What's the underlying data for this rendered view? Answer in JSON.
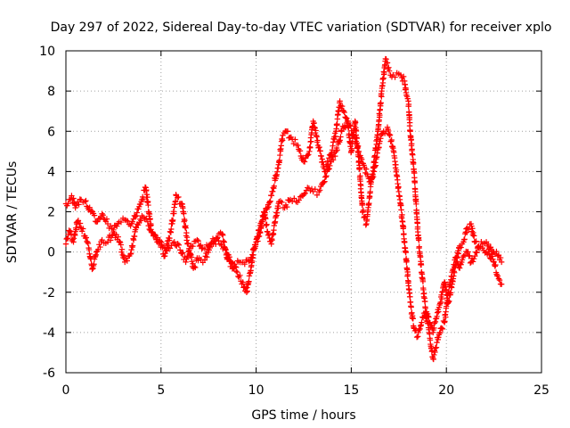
{
  "chart_data": {
    "type": "scatter",
    "title": "Day 297 of 2022, Sidereal Day-to-day VTEC variation (SDTVAR) for receiver xplo",
    "xlabel": "GPS time / hours",
    "ylabel": "SDTVAR / TECUs",
    "xlim": [
      0,
      25
    ],
    "ylim": [
      -6,
      10
    ],
    "x_ticks": [
      0,
      5,
      10,
      15,
      20,
      25
    ],
    "y_ticks": [
      -6,
      -4,
      -2,
      0,
      2,
      4,
      6,
      8,
      10
    ],
    "grid": true,
    "marker": "+",
    "series_color": "#ff0000",
    "series": [
      {
        "name": "SDTVAR",
        "trace_1": [
          [
            0.0,
            2.4
          ],
          [
            0.3,
            2.8
          ],
          [
            0.5,
            2.2
          ],
          [
            0.8,
            2.6
          ],
          [
            1.0,
            2.5
          ],
          [
            1.3,
            2.0
          ],
          [
            1.6,
            1.5
          ],
          [
            1.9,
            1.9
          ],
          [
            2.2,
            1.4
          ],
          [
            2.5,
            1.1
          ],
          [
            2.8,
            1.5
          ],
          [
            3.1,
            1.6
          ],
          [
            3.4,
            1.3
          ],
          [
            3.7,
            1.8
          ],
          [
            4.0,
            2.6
          ],
          [
            4.2,
            3.2
          ],
          [
            4.5,
            1.0
          ],
          [
            4.8,
            0.5
          ],
          [
            5.1,
            0.3
          ],
          [
            5.4,
            0.2
          ],
          [
            5.7,
            0.5
          ],
          [
            6.0,
            0.1
          ],
          [
            6.3,
            -0.5
          ],
          [
            6.6,
            0.3
          ],
          [
            6.9,
            0.6
          ],
          [
            7.2,
            0.2
          ],
          [
            7.5,
            0.3
          ],
          [
            7.8,
            0.6
          ],
          [
            8.1,
            0.4
          ],
          [
            8.4,
            0.1
          ],
          [
            8.7,
            -0.5
          ],
          [
            9.0,
            -1.0
          ],
          [
            9.3,
            -1.5
          ],
          [
            9.5,
            -2.0
          ],
          [
            9.7,
            -1.0
          ],
          [
            9.9,
            0.2
          ],
          [
            10.2,
            1.0
          ],
          [
            10.4,
            2.0
          ],
          [
            10.6,
            1.0
          ],
          [
            10.8,
            0.4
          ],
          [
            11.0,
            1.5
          ],
          [
            11.2,
            2.5
          ],
          [
            11.5,
            2.2
          ],
          [
            11.8,
            2.6
          ],
          [
            12.1,
            2.5
          ],
          [
            12.4,
            2.8
          ],
          [
            12.7,
            3.2
          ],
          [
            13.0,
            3.0
          ],
          [
            13.3,
            3.0
          ],
          [
            13.6,
            3.5
          ],
          [
            13.9,
            4.5
          ],
          [
            14.2,
            5.0
          ],
          [
            14.5,
            6.0
          ],
          [
            14.8,
            6.5
          ],
          [
            15.1,
            5.8
          ],
          [
            15.4,
            5.0
          ],
          [
            15.7,
            4.2
          ],
          [
            16.0,
            3.5
          ],
          [
            16.2,
            4.0
          ],
          [
            16.5,
            5.5
          ],
          [
            16.7,
            6.0
          ],
          [
            16.9,
            6.2
          ],
          [
            17.1,
            5.5
          ],
          [
            17.3,
            4.5
          ],
          [
            17.5,
            3.0
          ],
          [
            17.7,
            1.5
          ],
          [
            17.9,
            -0.5
          ],
          [
            18.1,
            -2.5
          ],
          [
            18.3,
            -3.8
          ],
          [
            18.5,
            -4.2
          ],
          [
            18.7,
            -3.5
          ],
          [
            18.9,
            -3.0
          ],
          [
            19.1,
            -4.0
          ],
          [
            19.3,
            -5.3
          ],
          [
            19.5,
            -4.5
          ],
          [
            19.7,
            -3.8
          ],
          [
            19.9,
            -3.5
          ],
          [
            20.1,
            -2.0
          ],
          [
            20.3,
            -1.0
          ],
          [
            20.5,
            -0.3
          ],
          [
            20.7,
            -0.8
          ],
          [
            20.9,
            -0.2
          ],
          [
            21.1,
            0.0
          ],
          [
            21.3,
            -0.5
          ],
          [
            21.5,
            -0.2
          ],
          [
            21.7,
            0.2
          ],
          [
            21.9,
            0.4
          ],
          [
            22.1,
            0.5
          ],
          [
            22.3,
            0.2
          ],
          [
            22.5,
            -0.5
          ],
          [
            22.7,
            -1.2
          ],
          [
            22.9,
            -1.6
          ]
        ],
        "trace_2": [
          [
            0.0,
            0.4
          ],
          [
            0.2,
            1.0
          ],
          [
            0.4,
            0.5
          ],
          [
            0.6,
            1.5
          ],
          [
            0.8,
            1.2
          ],
          [
            1.0,
            0.8
          ],
          [
            1.2,
            0.2
          ],
          [
            1.4,
            -0.8
          ],
          [
            1.6,
            0.0
          ],
          [
            1.9,
            0.6
          ],
          [
            2.2,
            0.5
          ],
          [
            2.5,
            1.0
          ],
          [
            2.8,
            0.5
          ],
          [
            3.1,
            -0.5
          ],
          [
            3.4,
            -0.1
          ],
          [
            3.7,
            1.2
          ],
          [
            4.0,
            1.8
          ],
          [
            4.3,
            1.5
          ],
          [
            4.6,
            0.8
          ],
          [
            4.9,
            0.5
          ],
          [
            5.2,
            -0.2
          ],
          [
            5.5,
            1.0
          ],
          [
            5.8,
            2.8
          ],
          [
            6.1,
            2.4
          ],
          [
            6.4,
            0.4
          ],
          [
            6.7,
            -0.8
          ],
          [
            7.0,
            -0.3
          ],
          [
            7.3,
            -0.4
          ],
          [
            7.6,
            0.4
          ],
          [
            7.9,
            0.7
          ],
          [
            8.2,
            0.9
          ],
          [
            8.5,
            -0.3
          ],
          [
            8.8,
            -0.8
          ],
          [
            9.1,
            -0.5
          ],
          [
            9.4,
            -0.6
          ],
          [
            9.7,
            -0.4
          ],
          [
            10.0,
            0.5
          ],
          [
            10.3,
            1.5
          ],
          [
            10.6,
            2.2
          ],
          [
            10.9,
            3.2
          ],
          [
            11.2,
            4.5
          ],
          [
            11.4,
            5.8
          ],
          [
            11.6,
            6.0
          ],
          [
            11.9,
            5.6
          ],
          [
            12.2,
            5.3
          ],
          [
            12.5,
            4.5
          ],
          [
            12.8,
            5.0
          ],
          [
            13.0,
            6.5
          ],
          [
            13.3,
            5.2
          ],
          [
            13.6,
            4.0
          ],
          [
            13.9,
            4.8
          ],
          [
            14.2,
            6.0
          ],
          [
            14.4,
            7.5
          ],
          [
            14.6,
            7.0
          ],
          [
            14.8,
            6.5
          ],
          [
            15.0,
            5.0
          ],
          [
            15.2,
            6.5
          ],
          [
            15.4,
            4.5
          ],
          [
            15.6,
            2.0
          ],
          [
            15.8,
            1.4
          ],
          [
            16.0,
            3.0
          ],
          [
            16.2,
            4.5
          ],
          [
            16.4,
            6.0
          ],
          [
            16.6,
            8.0
          ],
          [
            16.8,
            9.6
          ],
          [
            17.0,
            9.0
          ],
          [
            17.2,
            8.8
          ],
          [
            17.4,
            8.9
          ],
          [
            17.6,
            8.8
          ],
          [
            17.8,
            8.5
          ],
          [
            17.9,
            7.8
          ],
          [
            18.0,
            7.5
          ],
          [
            18.1,
            6.0
          ],
          [
            18.3,
            4.0
          ],
          [
            18.5,
            1.0
          ],
          [
            18.7,
            -1.0
          ],
          [
            18.9,
            -2.8
          ],
          [
            19.1,
            -3.5
          ],
          [
            19.3,
            -4.0
          ],
          [
            19.5,
            -3.2
          ],
          [
            19.7,
            -2.5
          ],
          [
            19.9,
            -1.5
          ],
          [
            20.1,
            -2.5
          ],
          [
            20.3,
            -1.6
          ],
          [
            20.5,
            -0.6
          ],
          [
            20.7,
            0.3
          ],
          [
            20.9,
            0.5
          ],
          [
            21.1,
            1.2
          ],
          [
            21.3,
            1.4
          ],
          [
            21.5,
            0.5
          ],
          [
            21.7,
            0.3
          ],
          [
            21.9,
            0.2
          ],
          [
            22.1,
            0.0
          ],
          [
            22.3,
            -0.3
          ],
          [
            22.5,
            0.0
          ],
          [
            22.7,
            -0.2
          ],
          [
            22.9,
            -0.5
          ]
        ]
      }
    ]
  }
}
